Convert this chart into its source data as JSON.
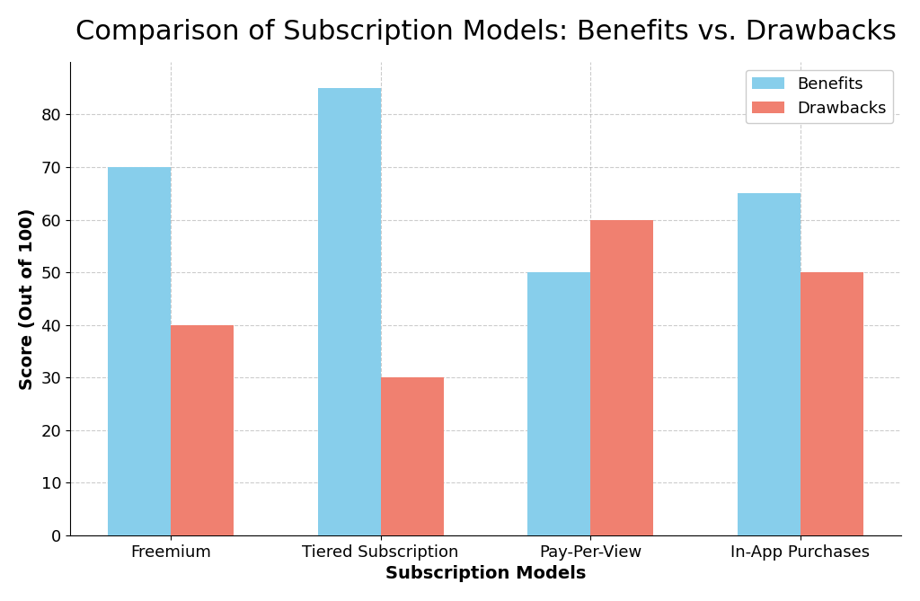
{
  "title": "Comparison of Subscription Models: Benefits vs. Drawbacks",
  "xlabel": "Subscription Models",
  "ylabel": "Score (Out of 100)",
  "categories": [
    "Freemium",
    "Tiered Subscription",
    "Pay-Per-View",
    "In-App Purchases"
  ],
  "benefits": [
    70,
    85,
    50,
    65
  ],
  "drawbacks": [
    40,
    30,
    60,
    50
  ],
  "benefits_color": "#87CEEB",
  "drawbacks_color": "#F08070",
  "background_color": "#ffffff",
  "ylim": [
    0,
    90
  ],
  "yticks": [
    0,
    10,
    20,
    30,
    40,
    50,
    60,
    70,
    80
  ],
  "legend_labels": [
    "Benefits",
    "Drawbacks"
  ],
  "title_fontsize": 22,
  "axis_label_fontsize": 14,
  "tick_fontsize": 13,
  "legend_fontsize": 13,
  "bar_width": 0.3,
  "grid_style": "--",
  "grid_alpha": 0.6,
  "grid_color": "#aaaaaa"
}
